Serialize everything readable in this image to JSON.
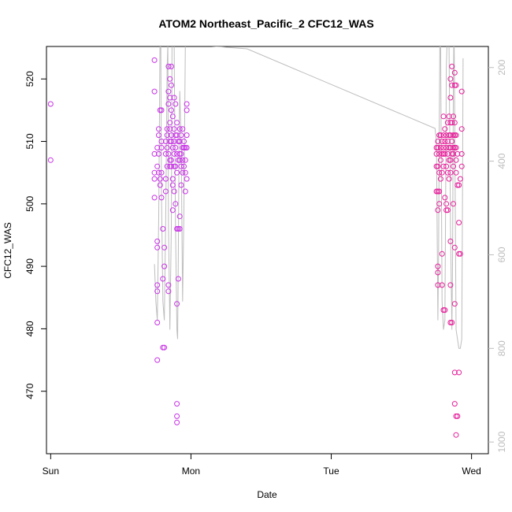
{
  "chart_data": {
    "type": "scatter",
    "title": "ATOM2 Northeast_Pacific_2 CFC12_WAS",
    "xlabel": "Date",
    "ylabel": "CFC12_WAS",
    "x_axis": {
      "unit": "days",
      "range": [
        -0.03,
        3.12
      ],
      "ticks": [
        {
          "value": 0,
          "label": "Sun"
        },
        {
          "value": 1,
          "label": "Mon"
        },
        {
          "value": 2,
          "label": "Tue"
        },
        {
          "value": 3,
          "label": "Wed"
        }
      ]
    },
    "y_axis": {
      "range": [
        460,
        525.2
      ],
      "ticks": [
        470,
        480,
        490,
        500,
        510,
        520
      ]
    },
    "y2_axis": {
      "note": "secondary axis (pressure-like), inverted",
      "range_top_to_bottom": [
        155,
        1025
      ],
      "ticks": [
        200,
        400,
        600,
        800,
        1000
      ],
      "color": "#bdbdbd"
    },
    "grid": false,
    "colors": {
      "point_early": "#c832e6",
      "point_late": "#e61e9a",
      "line": "#bdbdbd"
    },
    "series": [
      {
        "kind": "points",
        "points": [
          [
            0.0,
            516
          ],
          [
            0.0,
            507
          ],
          [
            0.74,
            523
          ],
          [
            0.74,
            518
          ],
          [
            0.74,
            508
          ],
          [
            0.74,
            505
          ],
          [
            0.74,
            504
          ],
          [
            0.74,
            501
          ],
          [
            0.76,
            509
          ],
          [
            0.76,
            506
          ],
          [
            0.76,
            494
          ],
          [
            0.76,
            493
          ],
          [
            0.76,
            487
          ],
          [
            0.76,
            486
          ],
          [
            0.76,
            481
          ],
          [
            0.76,
            475
          ],
          [
            0.77,
            512
          ],
          [
            0.77,
            511
          ],
          [
            0.77,
            508
          ],
          [
            0.77,
            505
          ],
          [
            0.78,
            515
          ],
          [
            0.78,
            504
          ],
          [
            0.78,
            503
          ],
          [
            0.79,
            515
          ],
          [
            0.79,
            510
          ],
          [
            0.79,
            509
          ],
          [
            0.79,
            505
          ],
          [
            0.79,
            501
          ],
          [
            0.8,
            496
          ],
          [
            0.8,
            488
          ],
          [
            0.8,
            477
          ],
          [
            0.81,
            493
          ],
          [
            0.81,
            490
          ],
          [
            0.81,
            477
          ],
          [
            0.82,
            510
          ],
          [
            0.82,
            508
          ],
          [
            0.82,
            504
          ],
          [
            0.82,
            502
          ],
          [
            0.83,
            512
          ],
          [
            0.83,
            511
          ],
          [
            0.83,
            509
          ],
          [
            0.83,
            506
          ],
          [
            0.84,
            522
          ],
          [
            0.84,
            518
          ],
          [
            0.84,
            516
          ],
          [
            0.84,
            508
          ],
          [
            0.84,
            487
          ],
          [
            0.84,
            486
          ],
          [
            0.85,
            520
          ],
          [
            0.85,
            517
          ],
          [
            0.85,
            513
          ],
          [
            0.85,
            512
          ],
          [
            0.85,
            510
          ],
          [
            0.85,
            507
          ],
          [
            0.85,
            506
          ],
          [
            0.86,
            522
          ],
          [
            0.86,
            519
          ],
          [
            0.86,
            515
          ],
          [
            0.86,
            511
          ],
          [
            0.86,
            510
          ],
          [
            0.86,
            507
          ],
          [
            0.86,
            506
          ],
          [
            0.87,
            514
          ],
          [
            0.87,
            509
          ],
          [
            0.87,
            504
          ],
          [
            0.87,
            503
          ],
          [
            0.87,
            499
          ],
          [
            0.88,
            517
          ],
          [
            0.88,
            512
          ],
          [
            0.88,
            510
          ],
          [
            0.88,
            508
          ],
          [
            0.88,
            506
          ],
          [
            0.88,
            502
          ],
          [
            0.89,
            516
          ],
          [
            0.89,
            511
          ],
          [
            0.89,
            509
          ],
          [
            0.89,
            506
          ],
          [
            0.89,
            500
          ],
          [
            0.9,
            513
          ],
          [
            0.9,
            511
          ],
          [
            0.9,
            508
          ],
          [
            0.9,
            505
          ],
          [
            0.9,
            496
          ],
          [
            0.9,
            484
          ],
          [
            0.9,
            468
          ],
          [
            0.9,
            466
          ],
          [
            0.9,
            465
          ],
          [
            0.91,
            510
          ],
          [
            0.91,
            507
          ],
          [
            0.91,
            496
          ],
          [
            0.91,
            488
          ],
          [
            0.92,
            512
          ],
          [
            0.92,
            510
          ],
          [
            0.92,
            508
          ],
          [
            0.92,
            507
          ],
          [
            0.92,
            498
          ],
          [
            0.92,
            496
          ],
          [
            0.93,
            511
          ],
          [
            0.93,
            508
          ],
          [
            0.93,
            506
          ],
          [
            0.93,
            503
          ],
          [
            0.94,
            512
          ],
          [
            0.94,
            509
          ],
          [
            0.94,
            507
          ],
          [
            0.94,
            505
          ],
          [
            0.95,
            510
          ],
          [
            0.95,
            509
          ],
          [
            0.95,
            506
          ],
          [
            0.96,
            509
          ],
          [
            0.96,
            507
          ],
          [
            0.96,
            505
          ],
          [
            0.96,
            502
          ],
          [
            0.97,
            516
          ],
          [
            0.97,
            515
          ],
          [
            0.97,
            511
          ],
          [
            0.97,
            509
          ],
          [
            0.97,
            504
          ]
        ]
      },
      {
        "kind": "points",
        "points": [
          [
            2.75,
            509
          ],
          [
            2.75,
            508
          ],
          [
            2.75,
            506
          ],
          [
            2.75,
            502
          ],
          [
            2.76,
            510
          ],
          [
            2.76,
            509
          ],
          [
            2.76,
            506
          ],
          [
            2.76,
            502
          ],
          [
            2.76,
            499
          ],
          [
            2.76,
            490
          ],
          [
            2.76,
            489
          ],
          [
            2.76,
            487
          ],
          [
            2.77,
            511
          ],
          [
            2.77,
            508
          ],
          [
            2.77,
            505
          ],
          [
            2.77,
            502
          ],
          [
            2.77,
            500
          ],
          [
            2.78,
            511
          ],
          [
            2.78,
            509
          ],
          [
            2.78,
            507
          ],
          [
            2.78,
            504
          ],
          [
            2.79,
            510
          ],
          [
            2.79,
            508
          ],
          [
            2.79,
            505
          ],
          [
            2.79,
            492
          ],
          [
            2.79,
            487
          ],
          [
            2.8,
            514
          ],
          [
            2.8,
            511
          ],
          [
            2.8,
            509
          ],
          [
            2.8,
            508
          ],
          [
            2.8,
            506
          ],
          [
            2.8,
            483
          ],
          [
            2.81,
            512
          ],
          [
            2.81,
            510
          ],
          [
            2.81,
            508
          ],
          [
            2.81,
            501
          ],
          [
            2.81,
            483
          ],
          [
            2.82,
            511
          ],
          [
            2.82,
            509
          ],
          [
            2.82,
            506
          ],
          [
            2.82,
            500
          ],
          [
            2.82,
            499
          ],
          [
            2.83,
            513
          ],
          [
            2.83,
            510
          ],
          [
            2.83,
            508
          ],
          [
            2.83,
            505
          ],
          [
            2.83,
            499
          ],
          [
            2.84,
            514
          ],
          [
            2.84,
            511
          ],
          [
            2.84,
            509
          ],
          [
            2.84,
            507
          ],
          [
            2.84,
            504
          ],
          [
            2.85,
            520
          ],
          [
            2.85,
            517
          ],
          [
            2.85,
            513
          ],
          [
            2.85,
            511
          ],
          [
            2.85,
            509
          ],
          [
            2.85,
            507
          ],
          [
            2.85,
            505
          ],
          [
            2.85,
            494
          ],
          [
            2.85,
            487
          ],
          [
            2.85,
            481
          ],
          [
            2.86,
            522
          ],
          [
            2.86,
            519
          ],
          [
            2.86,
            513
          ],
          [
            2.86,
            510
          ],
          [
            2.86,
            508
          ],
          [
            2.86,
            481
          ],
          [
            2.87,
            514
          ],
          [
            2.87,
            511
          ],
          [
            2.87,
            509
          ],
          [
            2.87,
            508
          ],
          [
            2.87,
            506
          ],
          [
            2.87,
            500
          ],
          [
            2.88,
            521
          ],
          [
            2.88,
            519
          ],
          [
            2.88,
            513
          ],
          [
            2.88,
            511
          ],
          [
            2.88,
            509
          ],
          [
            2.88,
            493
          ],
          [
            2.88,
            484
          ],
          [
            2.88,
            473
          ],
          [
            2.88,
            468
          ],
          [
            2.89,
            519
          ],
          [
            2.89,
            511
          ],
          [
            2.89,
            509
          ],
          [
            2.89,
            507
          ],
          [
            2.89,
            505
          ],
          [
            2.89,
            466
          ],
          [
            2.89,
            463
          ],
          [
            2.9,
            508
          ],
          [
            2.9,
            503
          ],
          [
            2.9,
            466
          ],
          [
            2.91,
            503
          ],
          [
            2.91,
            497
          ],
          [
            2.91,
            492
          ],
          [
            2.91,
            473
          ],
          [
            2.92,
            504
          ],
          [
            2.92,
            492
          ],
          [
            2.93,
            512
          ],
          [
            2.93,
            508
          ],
          [
            2.93,
            506
          ],
          [
            2.93,
            518
          ]
        ]
      },
      {
        "kind": "line",
        "axis": "y2",
        "points": [
          [
            0.74,
            620
          ],
          [
            0.75,
            700
          ],
          [
            0.76,
            740
          ],
          [
            0.77,
            520
          ],
          [
            0.775,
            320
          ],
          [
            0.78,
            100
          ],
          [
            0.785,
            140
          ],
          [
            0.79,
            470
          ],
          [
            0.8,
            700
          ],
          [
            0.81,
            740
          ],
          [
            0.82,
            520
          ],
          [
            0.83,
            200
          ],
          [
            0.835,
            150
          ],
          [
            0.84,
            540
          ],
          [
            0.85,
            760
          ],
          [
            0.86,
            540
          ],
          [
            0.865,
            140
          ],
          [
            0.87,
            100
          ],
          [
            0.88,
            150
          ],
          [
            0.89,
            540
          ],
          [
            0.9,
            760
          ],
          [
            0.905,
            780
          ],
          [
            0.91,
            600
          ],
          [
            0.915,
            350
          ],
          [
            0.92,
            250
          ],
          [
            0.93,
            360
          ],
          [
            0.94,
            700
          ],
          [
            0.95,
            500
          ],
          [
            0.96,
            150
          ],
          [
            1.4,
            160
          ],
          [
            2.74,
            330
          ],
          [
            2.75,
            360
          ],
          [
            2.76,
            740
          ],
          [
            2.765,
            600
          ],
          [
            2.77,
            320
          ],
          [
            2.775,
            100
          ],
          [
            2.78,
            150
          ],
          [
            2.79,
            700
          ],
          [
            2.8,
            760
          ],
          [
            2.81,
            740
          ],
          [
            2.815,
            500
          ],
          [
            2.82,
            200
          ],
          [
            2.83,
            100
          ],
          [
            2.84,
            160
          ],
          [
            2.85,
            540
          ],
          [
            2.86,
            760
          ],
          [
            2.865,
            600
          ],
          [
            2.87,
            250
          ],
          [
            2.875,
            100
          ],
          [
            2.88,
            320
          ],
          [
            2.89,
            760
          ],
          [
            2.9,
            780
          ],
          [
            2.91,
            800
          ],
          [
            2.92,
            800
          ],
          [
            2.93,
            780
          ],
          [
            2.935,
            500
          ],
          [
            2.94,
            180
          ]
        ]
      }
    ]
  }
}
